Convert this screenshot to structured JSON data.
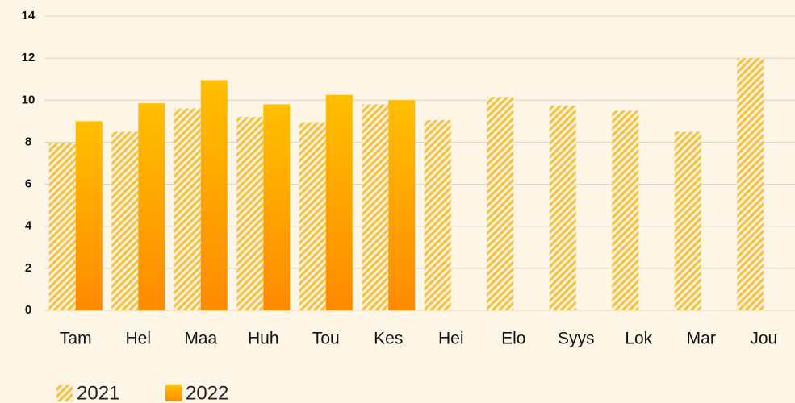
{
  "chart_data": {
    "type": "bar",
    "categories": [
      "Tam",
      "Hel",
      "Maa",
      "Huh",
      "Tou",
      "Kes",
      "Hei",
      "Elo",
      "Syys",
      "Lok",
      "Mar",
      "Jou"
    ],
    "series": [
      {
        "name": "2021",
        "color": "#f5c242",
        "pattern": "hatch",
        "values": [
          7.95,
          8.5,
          9.6,
          9.2,
          8.95,
          9.8,
          9.05,
          10.15,
          9.75,
          9.5,
          8.5,
          12.0
        ]
      },
      {
        "name": "2022",
        "color": "#ffa500",
        "pattern": "gradient",
        "values": [
          9.0,
          9.85,
          10.95,
          9.8,
          10.25,
          10.0,
          null,
          null,
          null,
          null,
          null,
          null
        ]
      }
    ],
    "ylim": [
      0,
      14
    ],
    "yticks": [
      0,
      2,
      4,
      6,
      8,
      10,
      12,
      14
    ],
    "grid": true,
    "legend": "bottom-left"
  }
}
